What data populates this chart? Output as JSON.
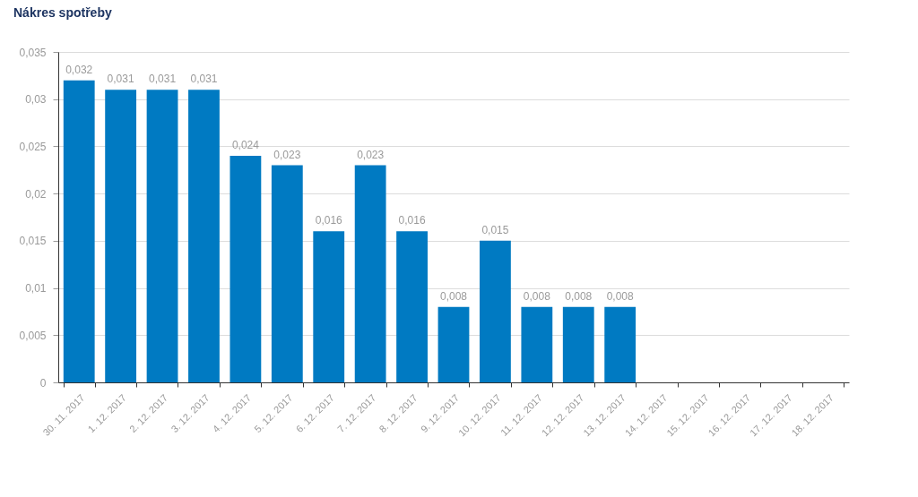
{
  "chart_data": {
    "type": "bar",
    "title": "Nákres spotřeby",
    "categories": [
      "30. 11. 2017",
      "1. 12. 2017",
      "2. 12. 2017",
      "3. 12. 2017",
      "4. 12. 2017",
      "5. 12. 2017",
      "6. 12. 2017",
      "7. 12. 2017",
      "8. 12. 2017",
      "9. 12. 2017",
      "10. 12. 2017",
      "11. 12. 2017",
      "12. 12. 2017",
      "13. 12. 2017",
      "14. 12. 2017",
      "15. 12. 2017",
      "16. 12. 2017",
      "17. 12. 2017",
      "18. 12. 2017"
    ],
    "values": [
      0.032,
      0.031,
      0.031,
      0.031,
      0.024,
      0.023,
      0.016,
      0.023,
      0.016,
      0.008,
      0.015,
      0.008,
      0.008,
      0.008,
      null,
      null,
      null,
      null,
      null
    ],
    "value_labels": [
      "0,032",
      "0,031",
      "0,031",
      "0,031",
      "0,024",
      "0,023",
      "0,016",
      "0,023",
      "0,016",
      "0,008",
      "0,015",
      "0,008",
      "0,008",
      "0,008",
      null,
      null,
      null,
      null,
      null
    ],
    "color": "#007ac2",
    "ylim": [
      0,
      0.035
    ],
    "yticks": [
      0,
      {
        "value": 0.005,
        "label": "0,005"
      },
      {
        "value": 0.01,
        "label": "0,01"
      },
      {
        "value": 0.015,
        "label": "0,015"
      },
      {
        "value": 0.02,
        "label": "0,02"
      },
      {
        "value": 0.025,
        "label": "0,025"
      },
      {
        "value": 0.03,
        "label": "0,03"
      },
      {
        "value": 0.035,
        "label": "0,035"
      }
    ],
    "grid": "y"
  }
}
